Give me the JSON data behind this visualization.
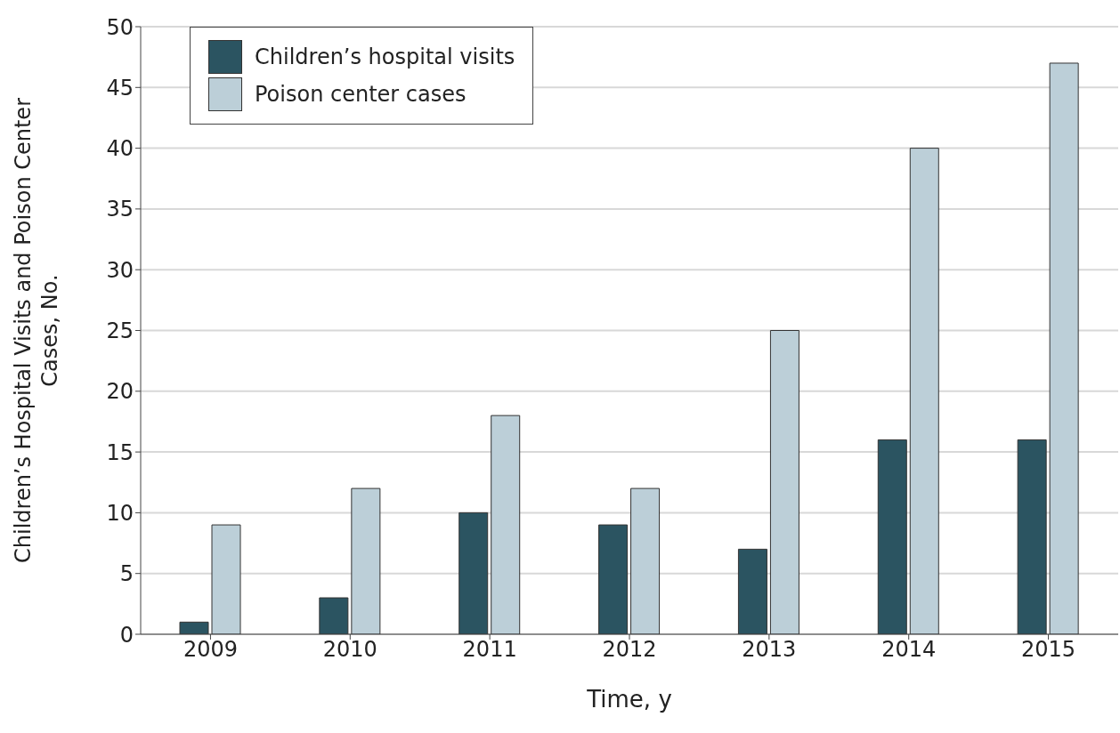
{
  "chart_data": {
    "type": "bar",
    "xlabel": "Time, y",
    "ylabel": "Children’s Hospital Visits and Poison Center Cases, No.",
    "categories": [
      "2009",
      "2010",
      "2011",
      "2012",
      "2013",
      "2014",
      "2015"
    ],
    "series": [
      {
        "name": "Children’s hospital visits",
        "color": "#2b5461",
        "values": [
          1,
          3,
          10,
          9,
          7,
          16,
          16
        ]
      },
      {
        "name": "Poison center cases",
        "color": "#bccfd8",
        "values": [
          9,
          12,
          18,
          12,
          25,
          40,
          47
        ]
      }
    ],
    "ylim": [
      0,
      50
    ],
    "yticks": [
      0,
      5,
      10,
      15,
      20,
      25,
      30,
      35,
      40,
      45,
      50
    ],
    "grid": "y",
    "legend": "top left"
  }
}
